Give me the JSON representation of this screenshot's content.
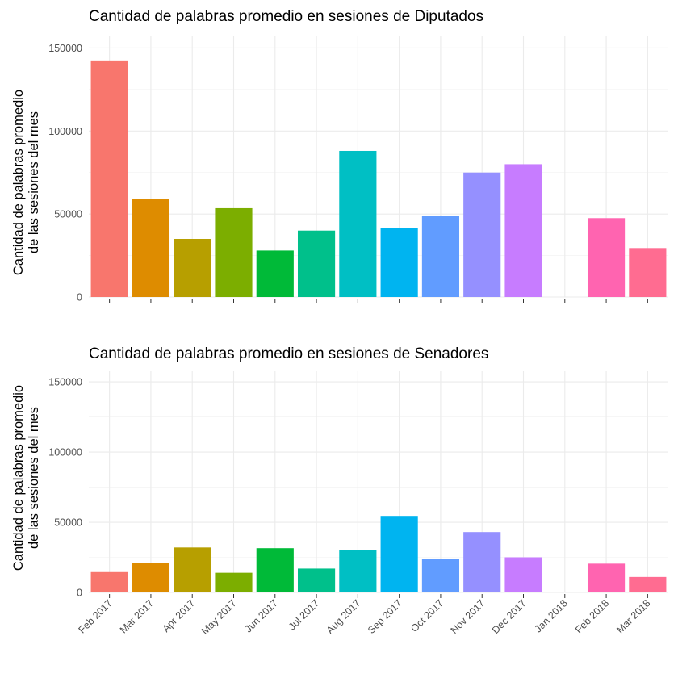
{
  "chart_data": [
    {
      "type": "bar",
      "title": "Cantidad de palabras promedio en sesiones de Diputados",
      "ylabel_lines": [
        "Cantidad de palabras promedio",
        "de las sesiones del mes"
      ],
      "xlabel": "",
      "ylim": [
        0,
        150000
      ],
      "yticks": [
        0,
        50000,
        100000,
        150000
      ],
      "ytick_labels": [
        "0",
        "50000",
        "100000",
        "150000"
      ],
      "grid": true,
      "show_x_tick_labels": false,
      "categories": [
        "Feb 2017",
        "Mar 2017",
        "Apr 2017",
        "May 2017",
        "Jun 2017",
        "Jul 2017",
        "Aug 2017",
        "Sep 2017",
        "Oct 2017",
        "Nov 2017",
        "Dec 2017",
        "Jan 2018",
        "Feb 2018",
        "Mar 2018"
      ],
      "values": [
        142500,
        59000,
        35000,
        53500,
        28000,
        40000,
        88000,
        41500,
        49000,
        75000,
        80000,
        0,
        47500,
        29500
      ]
    },
    {
      "type": "bar",
      "title": "Cantidad de palabras promedio en sesiones de Senadores",
      "ylabel_lines": [
        "Cantidad de palabras promedio",
        "de las sesiones del mes"
      ],
      "xlabel": "",
      "ylim": [
        0,
        150000
      ],
      "yticks": [
        0,
        50000,
        100000,
        150000
      ],
      "ytick_labels": [
        "0",
        "50000",
        "100000",
        "150000"
      ],
      "grid": true,
      "show_x_tick_labels": true,
      "categories": [
        "Feb 2017",
        "Mar 2017",
        "Apr 2017",
        "May 2017",
        "Jun 2017",
        "Jul 2017",
        "Aug 2017",
        "Sep 2017",
        "Oct 2017",
        "Nov 2017",
        "Dec 2017",
        "Jan 2018",
        "Feb 2018",
        "Mar 2018"
      ],
      "values": [
        14500,
        21000,
        32000,
        14000,
        31500,
        17000,
        30000,
        54500,
        24000,
        43000,
        25000,
        0,
        20500,
        11000
      ]
    }
  ],
  "colors": [
    "#F8766D",
    "#E08B00",
    "#BF9900",
    "#8FAA00",
    "#39B600",
    "#00BF73",
    "#00C0A1",
    "#00BDD6",
    "#00A5FF",
    "#7C88FF",
    "#C77CFF",
    "#ED68ED",
    "#FF61C3",
    "#FF6A98"
  ]
}
